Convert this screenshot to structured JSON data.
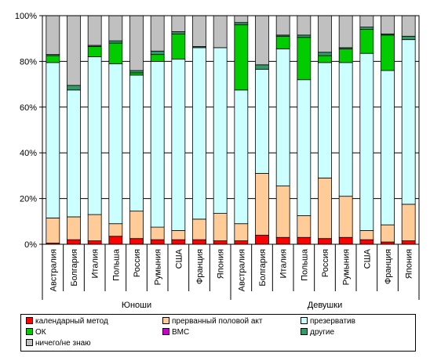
{
  "chart_data": {
    "type": "bar",
    "stacked": true,
    "categories": [
      "Австралия",
      "Болгария",
      "Италия",
      "Польша",
      "Россия",
      "Румыния",
      "США",
      "Франция",
      "Япония",
      "Австралия",
      "Болгария",
      "Италия",
      "Польша",
      "Россия",
      "Румыния",
      "США",
      "Франция",
      "Япония"
    ],
    "groups": [
      {
        "name": "Юноши",
        "count": 9
      },
      {
        "name": "Девушки",
        "count": 9
      }
    ],
    "y_ticks": [
      "0%",
      "20%",
      "40%",
      "60%",
      "80%",
      "100%"
    ],
    "ylim": [
      0,
      100
    ],
    "grid": true,
    "legend_position": "bottom",
    "series": [
      {
        "name": "календарный метод",
        "color": "#ff0000",
        "values": [
          0.5,
          2,
          1.5,
          3.5,
          2.5,
          2,
          2,
          2,
          1.5,
          1.5,
          4,
          3,
          3,
          2.5,
          3,
          2,
          1,
          1.5
        ]
      },
      {
        "name": "прерванный половой акт",
        "color": "#ffcc99",
        "values": [
          11,
          10,
          11.5,
          5.5,
          12,
          5.5,
          4,
          9,
          12,
          7.5,
          27,
          22.5,
          9.5,
          26.5,
          18,
          4,
          7.5,
          16
        ]
      },
      {
        "name": "презерватив",
        "color": "#ccffff",
        "values": [
          68,
          55.5,
          69,
          70,
          59.5,
          72.5,
          75,
          75,
          72.5,
          58.5,
          45.5,
          60,
          59.5,
          50.5,
          58.5,
          77.5,
          67.5,
          72
        ]
      },
      {
        "name": "ОК",
        "color": "#00cc00",
        "values": [
          3,
          0,
          4.5,
          9,
          1,
          3,
          11,
          0,
          0,
          28.5,
          0,
          5.5,
          18.5,
          3,
          6,
          10.5,
          15.5,
          0
        ]
      },
      {
        "name": "ВМС",
        "color": "#cc00cc",
        "values": [
          0,
          0,
          0,
          0,
          0,
          0,
          0,
          0,
          0,
          0,
          0,
          0,
          0,
          0,
          0,
          0,
          0,
          0
        ]
      },
      {
        "name": "другие",
        "color": "#339966",
        "values": [
          0.5,
          2,
          0.5,
          1,
          1,
          1.5,
          1,
          0.5,
          0,
          1,
          2,
          0.5,
          1,
          1.5,
          0.5,
          1,
          0.5,
          1.5
        ]
      },
      {
        "name": "ничего/не знаю",
        "color": "#c0c0c0",
        "values": [
          17,
          30.5,
          13,
          11,
          24,
          15.5,
          7,
          13.5,
          14,
          3,
          21.5,
          8.5,
          8.5,
          16,
          14,
          5,
          8,
          9
        ]
      }
    ]
  }
}
